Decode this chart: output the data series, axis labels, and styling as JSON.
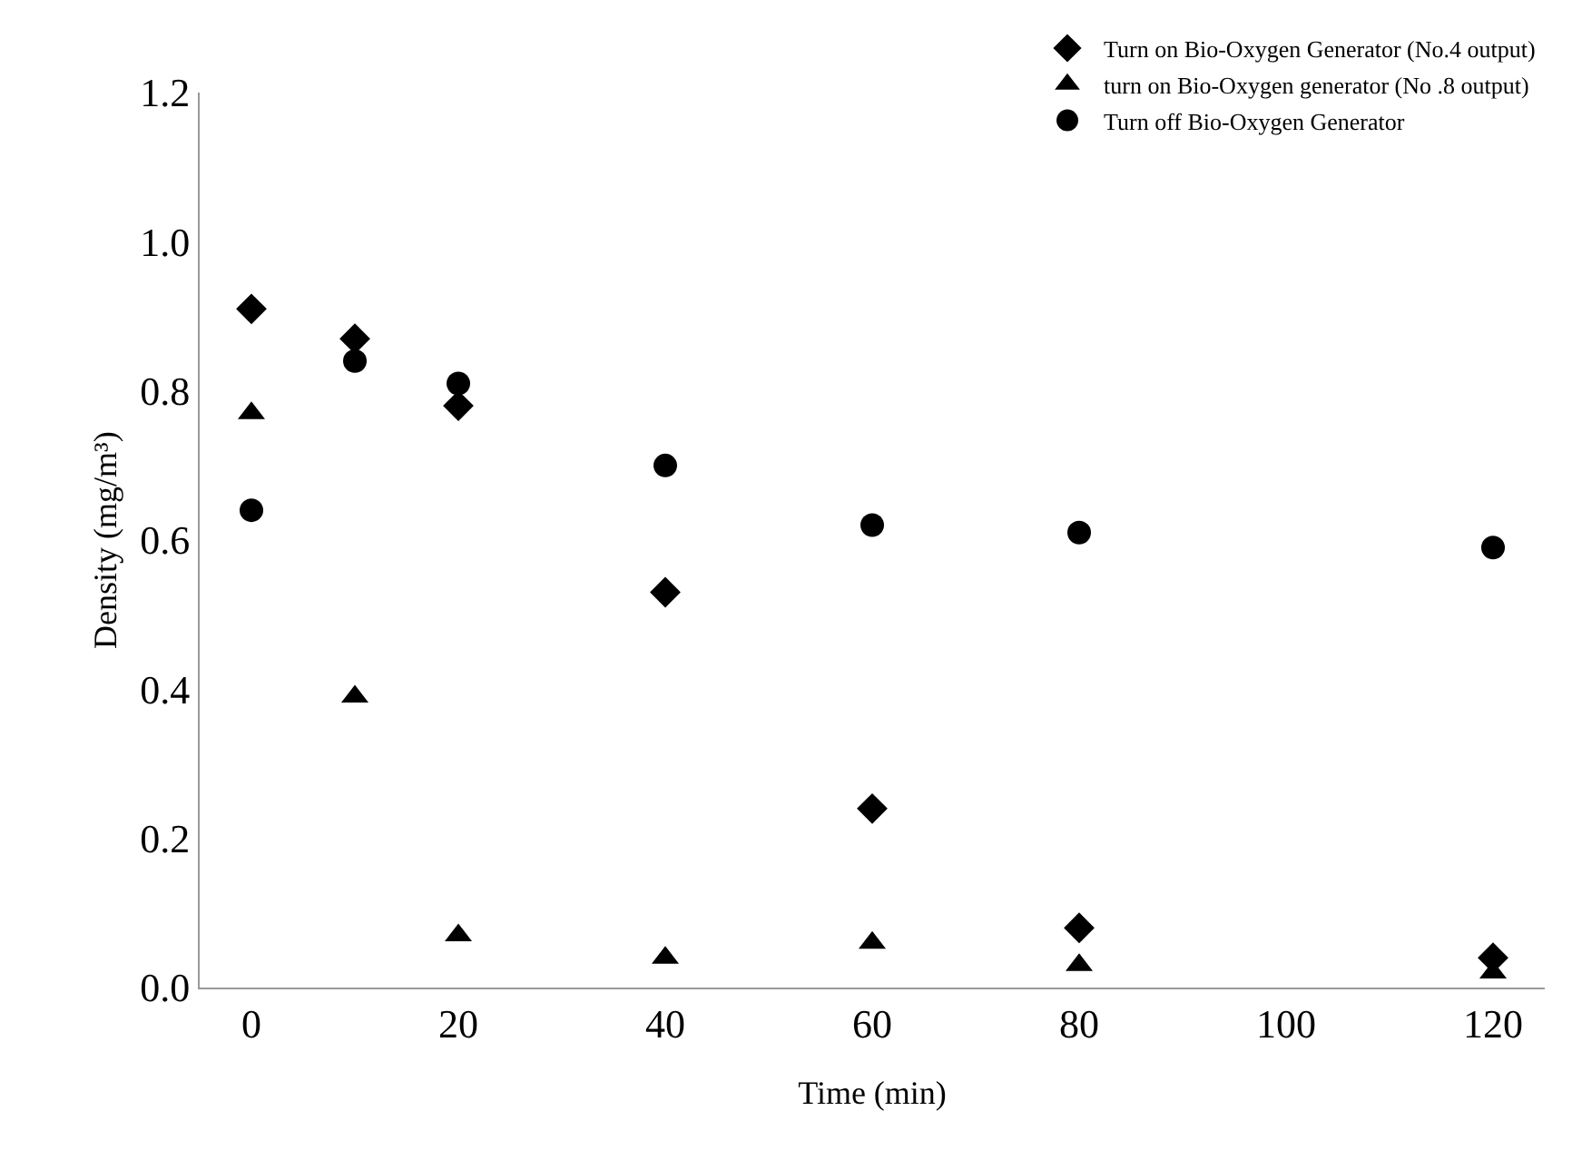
{
  "chart_data": {
    "type": "scatter",
    "xlabel": "Time (min)",
    "ylabel": "Density (mg/m³)",
    "x": [
      0,
      10,
      20,
      40,
      60,
      80,
      120
    ],
    "series": [
      {
        "name": "Turn on Bio-Oxygen Generator (No.4 output)",
        "color": "#000000",
        "marker": "diamond",
        "values": [
          0.91,
          0.87,
          0.78,
          0.53,
          0.24,
          0.08,
          0.04
        ]
      },
      {
        "name": "turn on Bio-Oxygen generator (No .8 output)",
        "color": "#000000",
        "marker": "triangle",
        "values": [
          0.77,
          0.39,
          0.07,
          0.04,
          0.06,
          0.03,
          0.02
        ]
      },
      {
        "name": "Turn off Bio-Oxygen Generator",
        "color": "#000000",
        "marker": "circle",
        "values": [
          0.64,
          0.84,
          0.81,
          0.7,
          0.62,
          0.61,
          0.59
        ]
      }
    ],
    "xlim": [
      -5,
      125
    ],
    "xticks": [
      0,
      20,
      40,
      60,
      80,
      100,
      120
    ],
    "ylim": [
      0,
      1.2
    ],
    "yticks": [
      {
        "value": 0,
        "label": "0.0"
      },
      {
        "value": 0.2,
        "label": "0.2"
      },
      {
        "value": 0.4,
        "label": "0.4"
      },
      {
        "value": 0.6,
        "label": "0.6"
      },
      {
        "value": 0.8,
        "label": "0.8"
      },
      {
        "value": 1,
        "label": "1.0"
      },
      {
        "value": 1.2,
        "label": "1.2"
      }
    ],
    "grid": false,
    "legend": "top right"
  }
}
